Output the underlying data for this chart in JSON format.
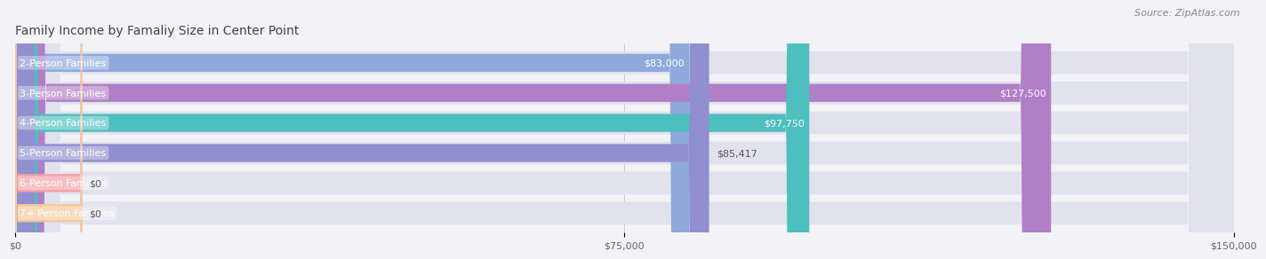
{
  "title": "Family Income by Famaliy Size in Center Point",
  "source": "Source: ZipAtlas.com",
  "categories": [
    "2-Person Families",
    "3-Person Families",
    "4-Person Families",
    "5-Person Families",
    "6-Person Families",
    "7+ Person Families"
  ],
  "values": [
    83000,
    127500,
    97750,
    85417,
    0,
    0
  ],
  "bar_colors": [
    "#8eaadb",
    "#b07fc7",
    "#4dbfbf",
    "#9090d0",
    "#f4a0a8",
    "#f5c89a"
  ],
  "value_labels": [
    "$83,000",
    "$127,500",
    "$97,750",
    "$85,417",
    "$0",
    "$0"
  ],
  "value_label_inside": [
    true,
    true,
    true,
    false,
    false,
    false
  ],
  "xmax": 150000,
  "xticks": [
    0,
    75000,
    150000
  ],
  "xtick_labels": [
    "$0",
    "$75,000",
    "$150,000"
  ],
  "background_color": "#f2f2f7",
  "bar_bg_color": "#e2e2ee",
  "title_fontsize": 10,
  "source_fontsize": 8,
  "label_fontsize": 8,
  "value_fontsize": 8
}
